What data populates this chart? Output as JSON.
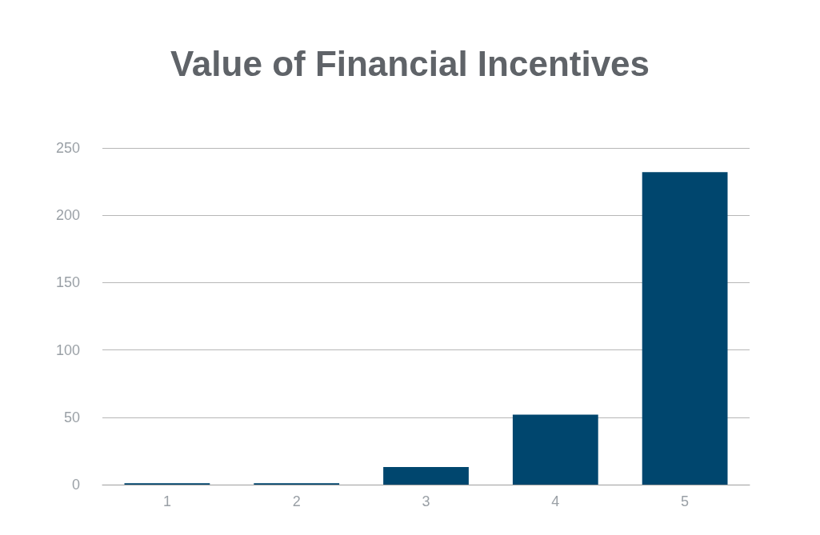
{
  "chart_data": {
    "type": "bar",
    "title": "Value of Financial Incentives",
    "categories": [
      "1",
      "2",
      "3",
      "4",
      "5"
    ],
    "values": [
      1,
      1,
      13,
      52,
      232
    ],
    "color": "#00466e",
    "ylim": [
      0,
      250
    ],
    "yticks": [
      0,
      50,
      100,
      150,
      200,
      250
    ],
    "grid": "y"
  }
}
